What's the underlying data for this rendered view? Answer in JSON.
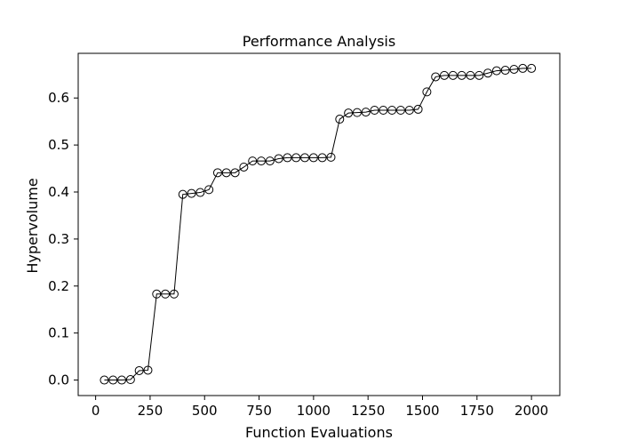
{
  "chart_data": {
    "type": "line",
    "title": "Performance Analysis",
    "xlabel": "Function Evaluations",
    "ylabel": "Hypervolume",
    "xlim": [
      -80,
      2130
    ],
    "ylim": [
      -0.033,
      0.695
    ],
    "xticks": [
      0,
      250,
      500,
      750,
      1000,
      1250,
      1500,
      1750,
      2000
    ],
    "xtick_labels": [
      "0",
      "250",
      "500",
      "750",
      "1000",
      "1250",
      "1500",
      "1750",
      "2000"
    ],
    "yticks": [
      0.0,
      0.1,
      0.2,
      0.3,
      0.4,
      0.5,
      0.6
    ],
    "ytick_labels": [
      "0.0",
      "0.1",
      "0.2",
      "0.3",
      "0.4",
      "0.5",
      "0.6"
    ],
    "grid": false,
    "legend": "none",
    "line_color": "#000000",
    "marker": "open-circle",
    "series": [
      {
        "x": [
          40,
          80,
          120,
          160,
          200,
          240,
          280,
          320,
          360,
          400,
          440,
          480,
          520,
          560,
          600,
          640,
          680,
          720,
          760,
          800,
          840,
          880,
          920,
          960,
          1000,
          1040,
          1080,
          1120,
          1160,
          1200,
          1240,
          1280,
          1320,
          1360,
          1400,
          1440,
          1480,
          1520,
          1560,
          1600,
          1640,
          1680,
          1720,
          1760,
          1800,
          1840,
          1880,
          1920,
          1960,
          2000
        ],
        "values": [
          0.0,
          0.0,
          0.0,
          0.001,
          0.02,
          0.021,
          0.183,
          0.183,
          0.183,
          0.395,
          0.397,
          0.399,
          0.405,
          0.441,
          0.441,
          0.441,
          0.453,
          0.466,
          0.466,
          0.466,
          0.471,
          0.473,
          0.473,
          0.473,
          0.473,
          0.473,
          0.474,
          0.555,
          0.568,
          0.569,
          0.57,
          0.574,
          0.574,
          0.574,
          0.574,
          0.574,
          0.576,
          0.613,
          0.645,
          0.648,
          0.648,
          0.648,
          0.648,
          0.648,
          0.653,
          0.658,
          0.659,
          0.661,
          0.663,
          0.663
        ]
      }
    ]
  }
}
